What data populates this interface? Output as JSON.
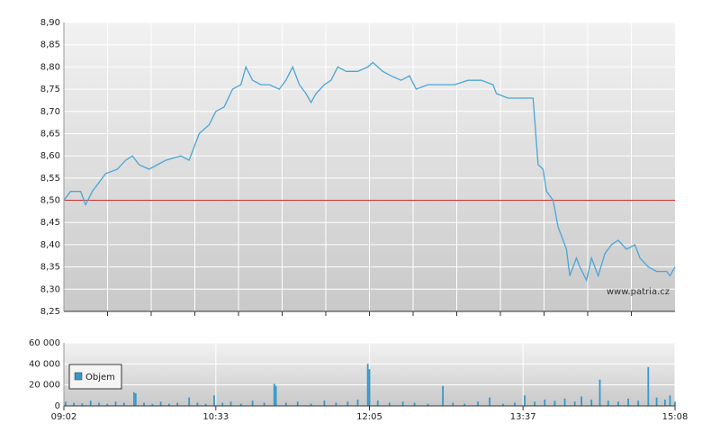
{
  "chart_data": [
    {
      "type": "line",
      "color": "#4aa6d6",
      "annotation": "www.patria.cz",
      "reference_line": 8.5,
      "reference_color": "#cc3333",
      "xlim": [
        542,
        908
      ],
      "x": [
        542,
        546,
        552,
        555,
        559,
        563,
        567,
        574,
        579,
        583,
        587,
        593,
        598,
        603,
        612,
        617,
        620,
        623,
        629,
        633,
        638,
        643,
        648,
        651,
        655,
        660,
        665,
        671,
        675,
        679,
        683,
        687,
        690,
        693,
        698,
        702,
        706,
        711,
        718,
        724,
        727,
        733,
        738,
        744,
        749,
        753,
        760,
        768,
        776,
        784,
        792,
        799,
        801,
        808,
        819,
        823,
        826,
        829,
        831,
        835,
        838,
        841,
        843,
        845,
        849,
        851,
        855,
        858,
        862,
        866,
        870,
        874,
        879,
        884,
        887,
        892,
        897,
        903,
        905,
        908
      ],
      "values": [
        8.5,
        8.52,
        8.52,
        8.49,
        8.52,
        8.54,
        8.56,
        8.57,
        8.59,
        8.6,
        8.58,
        8.57,
        8.58,
        8.59,
        8.6,
        8.59,
        8.62,
        8.65,
        8.67,
        8.7,
        8.71,
        8.75,
        8.76,
        8.8,
        8.77,
        8.76,
        8.76,
        8.75,
        8.77,
        8.8,
        8.76,
        8.74,
        8.72,
        8.74,
        8.76,
        8.77,
        8.8,
        8.79,
        8.79,
        8.8,
        8.81,
        8.79,
        8.78,
        8.77,
        8.78,
        8.75,
        8.76,
        8.76,
        8.76,
        8.77,
        8.77,
        8.76,
        8.74,
        8.73,
        8.73,
        8.73,
        8.58,
        8.57,
        8.52,
        8.5,
        8.44,
        8.41,
        8.39,
        8.33,
        8.37,
        8.35,
        8.32,
        8.37,
        8.33,
        8.38,
        8.4,
        8.41,
        8.39,
        8.4,
        8.37,
        8.35,
        8.34,
        8.34,
        8.33,
        8.35
      ],
      "ylim": [
        8.25,
        8.9
      ],
      "yticks": [
        {
          "value": 8.25,
          "label": "8,25"
        },
        {
          "value": 8.3,
          "label": "8,30"
        },
        {
          "value": 8.35,
          "label": "8,35"
        },
        {
          "value": 8.4,
          "label": "8,40"
        },
        {
          "value": 8.45,
          "label": "8,45"
        },
        {
          "value": 8.5,
          "label": "8,50"
        },
        {
          "value": 8.55,
          "label": "8,55"
        },
        {
          "value": 8.6,
          "label": "8,60"
        },
        {
          "value": 8.65,
          "label": "8,65"
        },
        {
          "value": 8.7,
          "label": "8,70"
        },
        {
          "value": 8.75,
          "label": "8,75"
        },
        {
          "value": 8.8,
          "label": "8,80"
        },
        {
          "value": 8.85,
          "label": "8,85"
        },
        {
          "value": 8.9,
          "label": "8,90"
        }
      ],
      "grid": true
    },
    {
      "type": "bar",
      "xlim": [
        542,
        908
      ],
      "xticks": [
        {
          "value": 542,
          "label": "09:02"
        },
        {
          "value": 633,
          "label": "10:33"
        },
        {
          "value": 725,
          "label": "12:05"
        },
        {
          "value": 817,
          "label": "13:37"
        },
        {
          "value": 908,
          "label": "15:08"
        }
      ],
      "x": [
        543,
        548,
        553,
        558,
        563,
        568,
        573,
        578,
        584,
        585,
        590,
        595,
        600,
        605,
        610,
        617,
        622,
        627,
        632,
        637,
        642,
        648,
        655,
        662,
        668,
        669,
        675,
        682,
        690,
        698,
        705,
        712,
        718,
        724,
        725,
        730,
        737,
        745,
        752,
        760,
        769,
        775,
        782,
        790,
        797,
        805,
        812,
        818,
        824,
        830,
        836,
        842,
        848,
        852,
        858,
        863,
        868,
        874,
        880,
        886,
        892,
        897,
        902,
        905,
        908
      ],
      "series": [
        {
          "name": "Objem",
          "color": "#3399cc",
          "values": [
            4000,
            3000,
            2500,
            5000,
            3000,
            2000,
            4000,
            3000,
            13000,
            12000,
            3000,
            2000,
            4000,
            2000,
            3000,
            8000,
            3000,
            2000,
            10000,
            3000,
            4000,
            2000,
            5000,
            3000,
            21000,
            19000,
            3000,
            4000,
            2000,
            5000,
            3000,
            4000,
            6000,
            40000,
            35000,
            5000,
            3000,
            4000,
            3000,
            2000,
            19000,
            3000,
            2000,
            4000,
            8000,
            2000,
            3000,
            10000,
            4000,
            6000,
            5000,
            7000,
            4000,
            9000,
            6000,
            25000,
            5000,
            4000,
            7000,
            5000,
            37000,
            8000,
            6000,
            10000,
            4000
          ]
        }
      ],
      "ylim": [
        0,
        60000
      ],
      "yticks": [
        {
          "value": 0,
          "label": "0"
        },
        {
          "value": 20000,
          "label": "20 000"
        },
        {
          "value": 40000,
          "label": "40 000"
        },
        {
          "value": 60000,
          "label": "60 000"
        }
      ],
      "grid": true,
      "legend": "upper left"
    }
  ]
}
